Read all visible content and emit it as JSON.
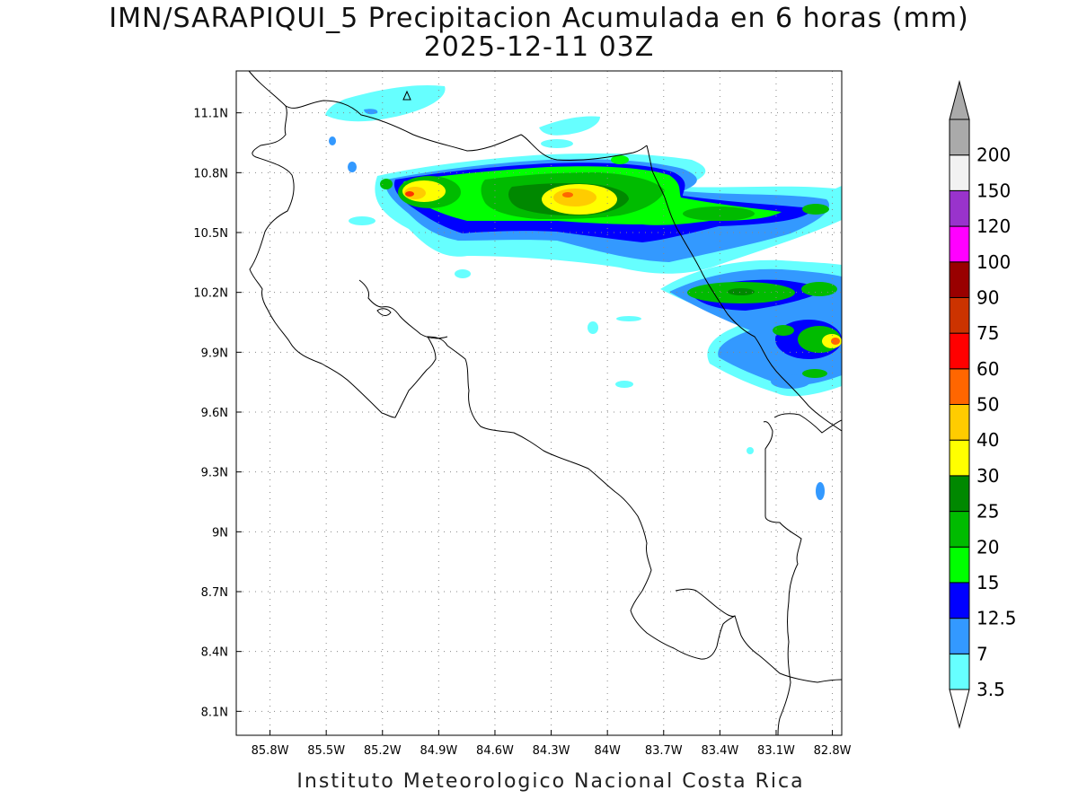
{
  "title": {
    "line1": "IMN/SARAPIQUI_5 Precipitacion Acumulada en 6 horas (mm)",
    "line2": "2025-12-11 03Z"
  },
  "footer": "Instituto Meteorologico Nacional Costa Rica",
  "map": {
    "lon_range": [
      -85.98,
      -82.75
    ],
    "lat_range": [
      7.98,
      11.31
    ],
    "lon_ticks": [
      {
        "value": -85.8,
        "label": "85.8W"
      },
      {
        "value": -85.5,
        "label": "85.5W"
      },
      {
        "value": -85.2,
        "label": "85.2W"
      },
      {
        "value": -84.9,
        "label": "84.9W"
      },
      {
        "value": -84.6,
        "label": "84.6W"
      },
      {
        "value": -84.3,
        "label": "84.3W"
      },
      {
        "value": -84.0,
        "label": "84W"
      },
      {
        "value": -83.7,
        "label": "83.7W"
      },
      {
        "value": -83.4,
        "label": "83.4W"
      },
      {
        "value": -83.1,
        "label": "83.1W"
      },
      {
        "value": -82.8,
        "label": "82.8W"
      }
    ],
    "lat_ticks": [
      {
        "value": 11.1,
        "label": "11.1N"
      },
      {
        "value": 10.8,
        "label": "10.8N"
      },
      {
        "value": 10.5,
        "label": "10.5N"
      },
      {
        "value": 10.2,
        "label": "10.2N"
      },
      {
        "value": 9.9,
        "label": "9.9N"
      },
      {
        "value": 9.6,
        "label": "9.6N"
      },
      {
        "value": 9.3,
        "label": "9.3N"
      },
      {
        "value": 9.0,
        "label": "9N"
      },
      {
        "value": 8.7,
        "label": "8.7N"
      },
      {
        "value": 8.4,
        "label": "8.4N"
      },
      {
        "value": 8.1,
        "label": "8.1N"
      }
    ],
    "grid": "dotted"
  },
  "colorbar": {
    "levels": [
      {
        "label": "3.5",
        "color": "#66ffff"
      },
      {
        "label": "7",
        "color": "#3399ff"
      },
      {
        "label": "12.5",
        "color": "#0000ff"
      },
      {
        "label": "15",
        "color": "#00ff00"
      },
      {
        "label": "20",
        "color": "#00bb00"
      },
      {
        "label": "25",
        "color": "#008800"
      },
      {
        "label": "30",
        "color": "#ffff00"
      },
      {
        "label": "40",
        "color": "#ffcc00"
      },
      {
        "label": "50",
        "color": "#ff6600"
      },
      {
        "label": "60",
        "color": "#ff0000"
      },
      {
        "label": "75",
        "color": "#cc3300"
      },
      {
        "label": "90",
        "color": "#990000"
      },
      {
        "label": "100",
        "color": "#ff00ff"
      },
      {
        "label": "120",
        "color": "#9933cc"
      },
      {
        "label": "150",
        "color": "#f2f2f2"
      },
      {
        "label": "200",
        "color": "#aaaaaa"
      }
    ],
    "low_arrow_color": "#ffffff",
    "high_arrow_color": "#aaaaaa"
  },
  "precip_cells": [
    {
      "lon": -84.95,
      "lat": 10.72,
      "rx": 0.14,
      "ry": 0.06,
      "level": 2
    },
    {
      "lon": -84.98,
      "lat": 10.71,
      "rx": 0.08,
      "ry": 0.04,
      "level": 6
    },
    {
      "lon": -85.02,
      "lat": 10.69,
      "rx": 0.03,
      "ry": 0.02,
      "level": 8
    },
    {
      "lon": -84.1,
      "lat": 10.68,
      "rx": 0.4,
      "ry": 0.11,
      "level": 3
    },
    {
      "lon": -84.12,
      "lat": 10.67,
      "rx": 0.22,
      "ry": 0.07,
      "level": 6
    },
    {
      "lon": -84.1,
      "lat": 10.69,
      "rx": 0.03,
      "ry": 0.02,
      "level": 8
    },
    {
      "lon": -83.25,
      "lat": 10.2,
      "rx": 0.25,
      "ry": 0.05,
      "level": 3
    },
    {
      "lon": -82.8,
      "lat": 9.96,
      "rx": 0.1,
      "ry": 0.05,
      "level": 5
    },
    {
      "lon": -82.78,
      "lat": 9.95,
      "rx": 0.05,
      "ry": 0.03,
      "level": 7
    },
    {
      "lon": -82.93,
      "lat": 10.6,
      "rx": 0.08,
      "ry": 0.03,
      "level": 3
    }
  ]
}
